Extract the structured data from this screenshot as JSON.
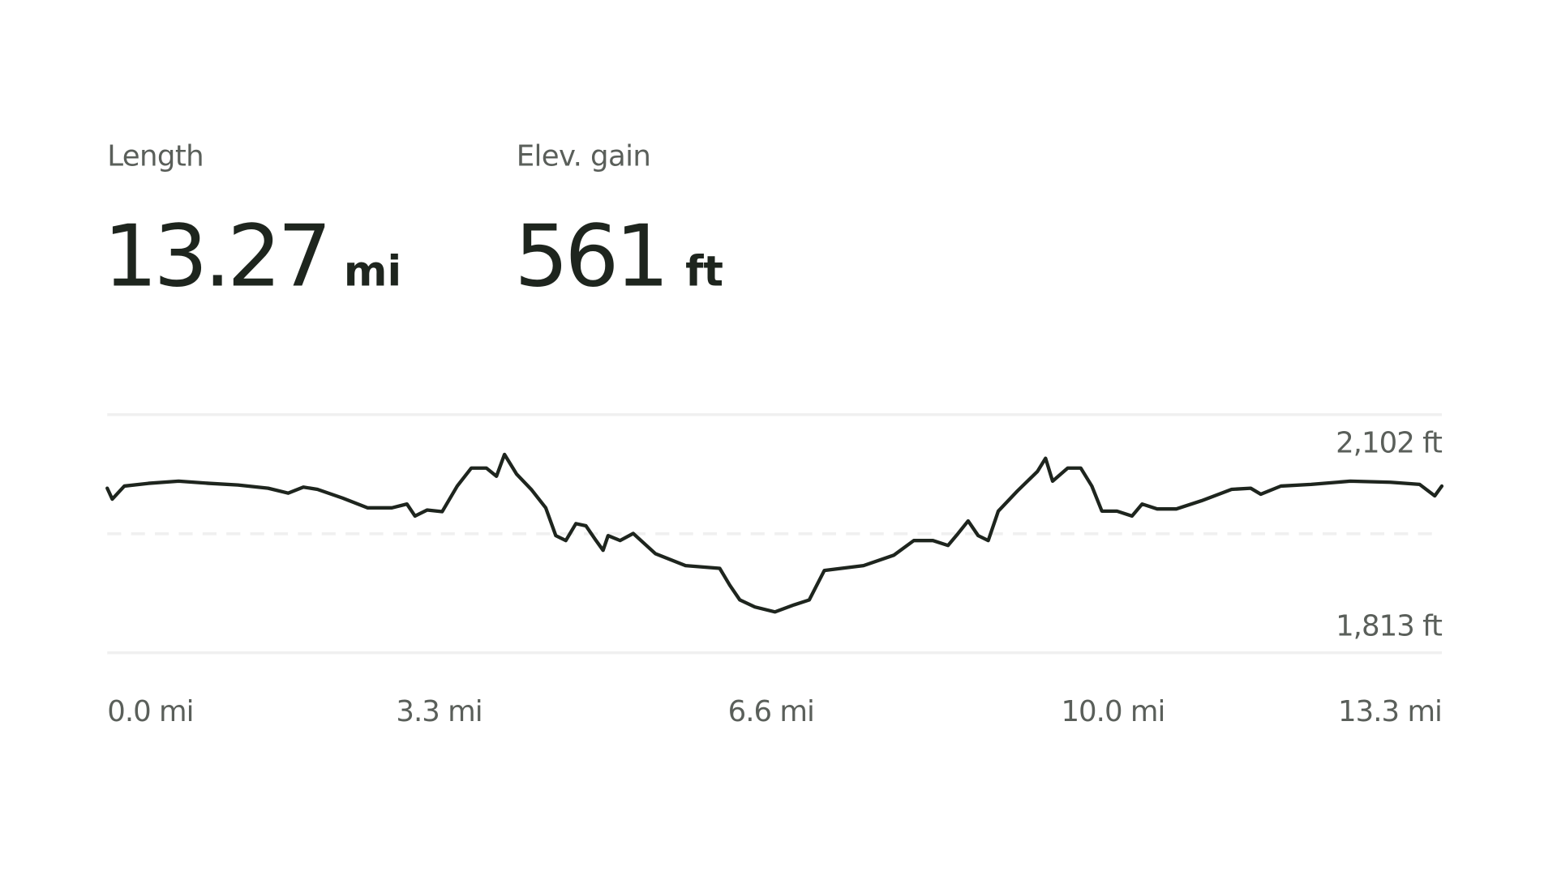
{
  "stats": [
    {
      "label": "Length",
      "value": 13.27,
      "unit": "mi"
    },
    {
      "label": "Elev. gain",
      "value": 561,
      "unit": "ft"
    }
  ],
  "chart_data": {
    "type": "line",
    "x": [
      0,
      0.05,
      0.17,
      0.41,
      0.71,
      1.01,
      1.3,
      1.6,
      1.8,
      1.95,
      2.09,
      2.34,
      2.59,
      2.83,
      2.98,
      3.06,
      3.18,
      3.33,
      3.48,
      3.62,
      3.77,
      3.87,
      3.95,
      4.07,
      4.22,
      4.36,
      4.46,
      4.56,
      4.66,
      4.76,
      4.86,
      4.93,
      4.98,
      5.1,
      5.23,
      5.45,
      5.75,
      6.09,
      6.19,
      6.29,
      6.44,
      6.64,
      6.83,
      6.98,
      7.13,
      7.52,
      7.82,
      8.02,
      8.21,
      8.36,
      8.46,
      8.56,
      8.66,
      8.76,
      8.86,
      9.05,
      9.25,
      9.33,
      9.4,
      9.55,
      9.68,
      9.79,
      9.89,
      10.04,
      10.19,
      10.29,
      10.44,
      10.63,
      10.88,
      11.18,
      11.37,
      11.47,
      11.67,
      11.97,
      12.36,
      12.76,
      13.05,
      13.2,
      13.27
    ],
    "series": [
      {
        "color": "#1e251e",
        "values": [
          2040,
          2020,
          2044,
          2049,
          2053,
          2049,
          2046,
          2040,
          2031,
          2042,
          2038,
          2022,
          2004,
          2004,
          2011,
          1989,
          2000,
          1997,
          2044,
          2077,
          2077,
          2062,
          2102,
          2066,
          2037,
          2004,
          1953,
          1944,
          1975,
          1971,
          1944,
          1926,
          1953,
          1944,
          1957,
          1920,
          1898,
          1893,
          1862,
          1835,
          1822,
          1813,
          1826,
          1835,
          1889,
          1898,
          1917,
          1944,
          1944,
          1935,
          1957,
          1980,
          1953,
          1944,
          1998,
          2035,
          2071,
          2095,
          2053,
          2077,
          2077,
          2044,
          1998,
          1998,
          1989,
          2011,
          2002,
          2002,
          2017,
          2038,
          2040,
          2029,
          2044,
          2047,
          2053,
          2051,
          2047,
          2026,
          2044
        ]
      }
    ],
    "xlim": [
      0,
      13.27
    ],
    "xticks": [
      {
        "value": 0,
        "label": "0.0 mi"
      },
      {
        "value": 3.3,
        "label": "3.3 mi"
      },
      {
        "value": 6.6,
        "label": "6.6 mi"
      },
      {
        "value": 10,
        "label": "10.0 mi"
      },
      {
        "value": 13.3,
        "label": "13.3 mi"
      }
    ],
    "ylim": [
      1738,
      2175
    ],
    "yticks": [
      {
        "value": 2102,
        "label": "2,102 ft"
      },
      {
        "value": 1813,
        "label": "1,813 ft"
      }
    ]
  }
}
